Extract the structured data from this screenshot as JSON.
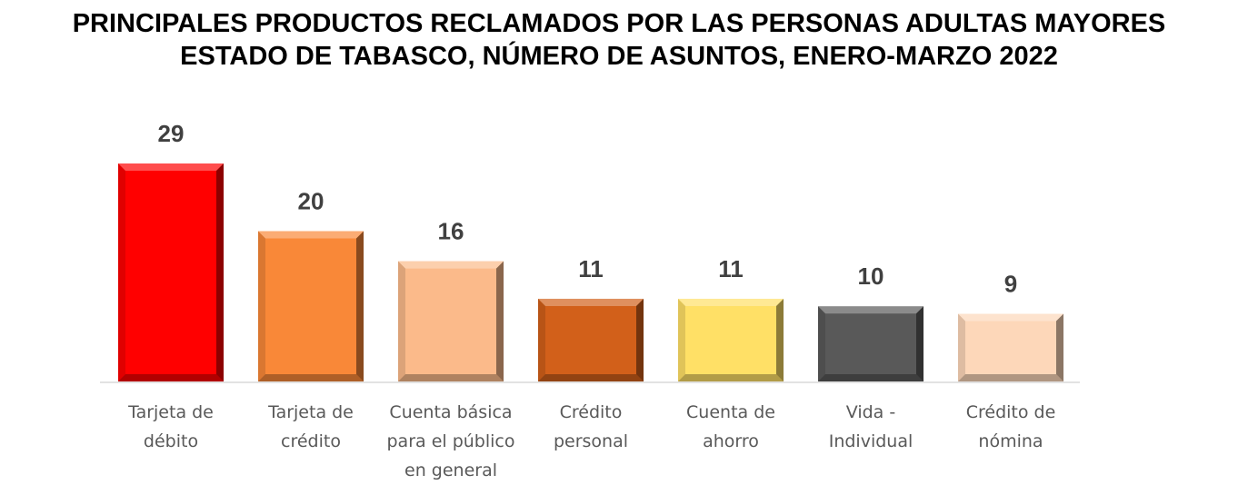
{
  "chart_data": {
    "type": "bar",
    "title_lines": [
      "PRINCIPALES PRODUCTOS RECLAMADOS POR LAS PERSONAS ADULTAS MAYORES",
      "ESTADO DE TABASCO, NÚMERO DE ASUNTOS, ENERO-MARZO 2022"
    ],
    "categories": [
      [
        "Tarjeta de",
        "débito"
      ],
      [
        "Tarjeta de",
        "crédito"
      ],
      [
        "Cuenta básica",
        "para el público",
        "en general"
      ],
      [
        "Crédito",
        "personal"
      ],
      [
        "Cuenta de",
        "ahorro"
      ],
      [
        "Vida -",
        "Individual"
      ],
      [
        "Crédito de",
        "nómina"
      ]
    ],
    "values": [
      29,
      20,
      16,
      11,
      11,
      10,
      9
    ],
    "colors": [
      "#FF0000",
      "#F98838",
      "#FBBA8A",
      "#D2601A",
      "#FFE066",
      "#595959",
      "#FDD7B9"
    ],
    "xlabel": "",
    "ylabel": "",
    "ylim": [
      0,
      29
    ],
    "grid": false,
    "legend": "none"
  }
}
